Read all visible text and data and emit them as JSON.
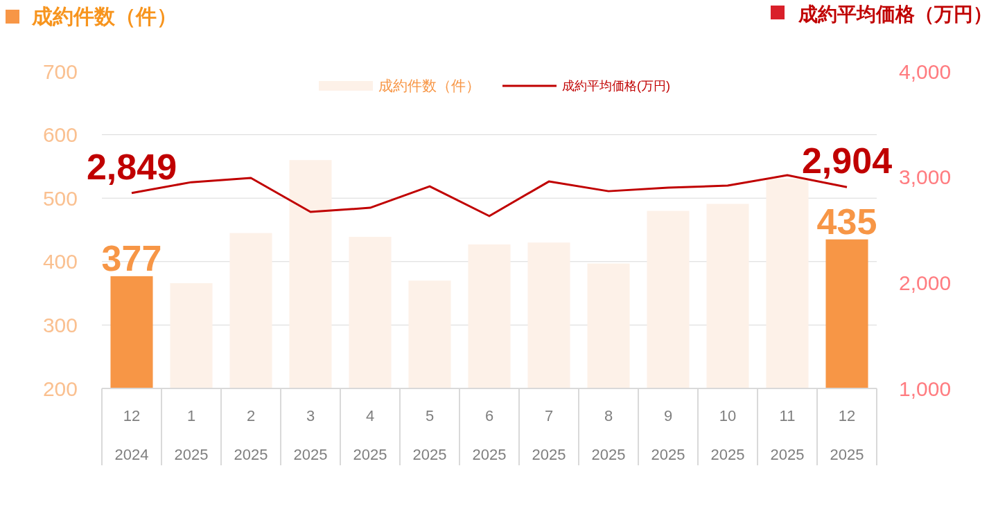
{
  "chart_data": {
    "type": "bar",
    "ylabel": "成約件数（件）",
    "y2label": "成約平均価格（万円）",
    "categories": [
      "12\n2024",
      "1\n2025",
      "2\n2025",
      "3\n2025",
      "4\n2025",
      "5\n2025",
      "6\n2025",
      "7\n2025",
      "8\n2025",
      "9\n2025",
      "10\n2025",
      "11\n2025",
      "12\n2025"
    ],
    "series": [
      {
        "name": "成約件数（件）",
        "color": "#fdf1e8",
        "colors": [
          "#f79646",
          "#fdf1e8",
          "#fdf1e8",
          "#fdf1e8",
          "#fdf1e8",
          "#fdf1e8",
          "#fdf1e8",
          "#fdf1e8",
          "#fdf1e8",
          "#fdf1e8",
          "#fdf1e8",
          "#fdf1e8",
          "#f79646"
        ],
        "values": [
          377,
          366,
          445,
          560,
          439,
          370,
          427,
          430,
          397,
          480,
          491,
          531,
          435
        ],
        "value_labels": [
          "377",
          null,
          null,
          null,
          null,
          null,
          null,
          null,
          null,
          null,
          null,
          null,
          "435"
        ]
      },
      {
        "name": "成約平均価格(万円)",
        "type": "line",
        "axis": "y2",
        "color": "#c00000",
        "values": [
          2849,
          2951,
          2991,
          2670,
          2709,
          2912,
          2631,
          2958,
          2866,
          2899,
          2919,
          3017,
          2904
        ],
        "value_labels": [
          "2,849",
          null,
          null,
          null,
          null,
          null,
          null,
          null,
          null,
          null,
          null,
          null,
          "2,904"
        ]
      }
    ],
    "ylim": [
      200,
      700
    ],
    "yticks": [
      200,
      300,
      400,
      500,
      600,
      700
    ],
    "y2lim": [
      1000,
      4000
    ],
    "y2ticks": [
      {
        "value": 1000,
        "label": "1,000"
      },
      {
        "value": 2000,
        "label": "2,000"
      },
      {
        "value": 3000,
        "label": "3,000"
      },
      {
        "value": 4000,
        "label": "4,000"
      }
    ],
    "grid": "y",
    "legend": "top",
    "marker": "none",
    "line_style": "solid"
  }
}
